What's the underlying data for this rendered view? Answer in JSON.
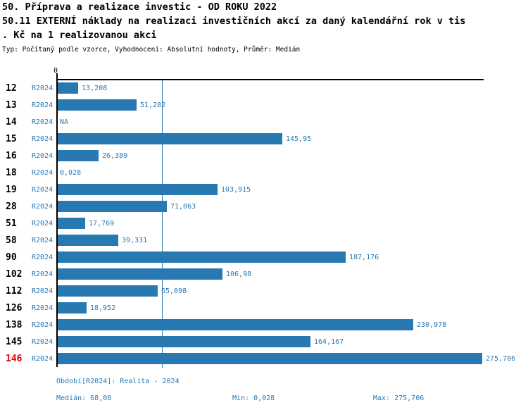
{
  "title": {
    "line1": "50. Příprava a realizace investic - OD ROKU 2022",
    "line2": "50.11 EXTERNÍ náklady na realizaci investičních akcí za daný kalendářní rok v tis",
    "line3": ". Kč na 1 realizovanou akci",
    "meta": "Typ: Počítaný podle vzorce, Vyhodnocení: Absolutní hodnoty, Průměr: Medián"
  },
  "chart_data": {
    "type": "bar",
    "orientation": "horizontal",
    "axis_zero_label": "0",
    "categories": [
      "12",
      "13",
      "14",
      "15",
      "16",
      "18",
      "19",
      "28",
      "51",
      "58",
      "90",
      "102",
      "112",
      "126",
      "138",
      "145",
      "146"
    ],
    "series": [
      {
        "name": "R2024",
        "values": [
          13.208,
          51.282,
          null,
          145.95,
          26.389,
          0.028,
          103.915,
          71.063,
          17.769,
          39.331,
          187.176,
          106.98,
          65.098,
          18.952,
          230.978,
          164.167,
          275.706
        ],
        "value_labels": [
          "13,208",
          "51,282",
          "NA",
          "145,95",
          "26,389",
          "0,028",
          "103,915",
          "71,063",
          "17,769",
          "39,331",
          "187,176",
          "106,98",
          "65,098",
          "18,952",
          "230,978",
          "164,167",
          "275,706"
        ]
      }
    ],
    "highlighted_category": "146",
    "median_value": 68.08,
    "xlim": [
      0,
      280
    ],
    "grid": false,
    "legend_position": "none",
    "colors": {
      "bar": "#2878b2",
      "label_blue": "#2878b2",
      "highlight_red": "#dd0000",
      "axis_black": "#000000"
    }
  },
  "footer": {
    "period_label": "Období[R2024]: Realita - 2024",
    "median_label": "Medián: 68,08",
    "min_label": "Min: 0,028",
    "max_label": "Max: 275,706"
  }
}
